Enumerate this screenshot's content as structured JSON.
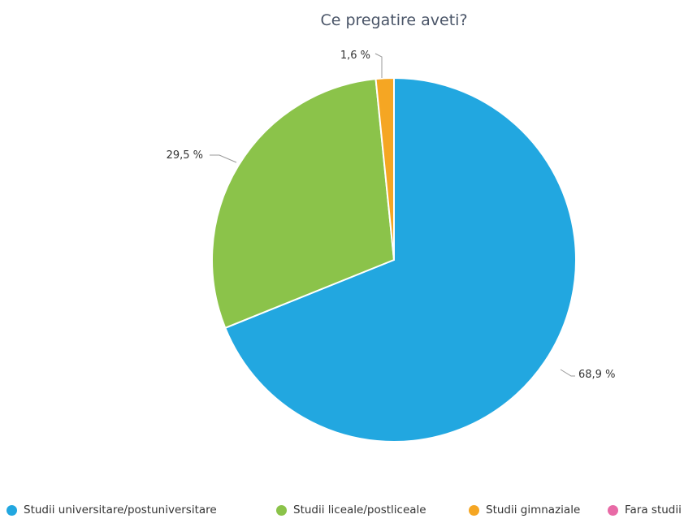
{
  "chart_data": {
    "type": "pie",
    "title": "Ce pregatire aveti?",
    "categories": [
      "Studii universitare/postuniversitare",
      "Studii liceale/postliceale",
      "Studii gimnaziale",
      "Fara studii"
    ],
    "values": [
      68.9,
      29.5,
      1.6,
      0
    ],
    "labels": [
      "68,9 %",
      "29,5 %",
      "1,6 %",
      ""
    ],
    "colors": [
      "#22a7e0",
      "#8bc34a",
      "#f5a623",
      "#e86aa6"
    ],
    "legend_position": "bottom"
  }
}
